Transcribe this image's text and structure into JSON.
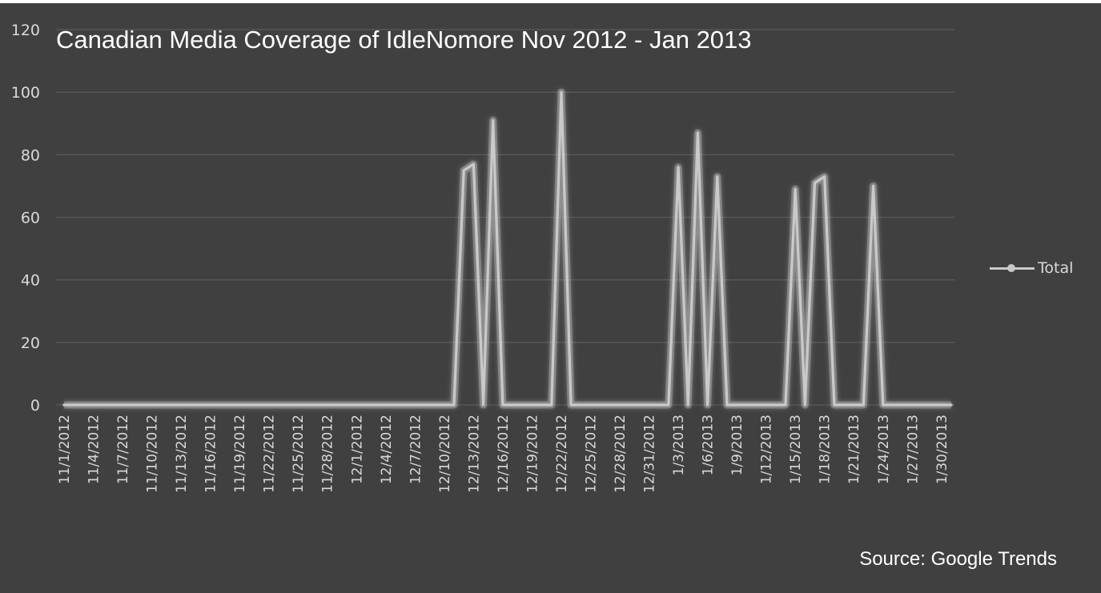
{
  "chart_data": {
    "type": "line",
    "title": "Canadian Media Coverage of IdleNomore Nov 2012 - Jan 2013",
    "source": "Source: Google Trends",
    "xlabel": "",
    "ylabel": "",
    "ylim": [
      0,
      120
    ],
    "yticks": [
      0,
      20,
      40,
      60,
      80,
      100,
      120
    ],
    "grid": true,
    "legend_position": "right",
    "line_color": "#c9c9c9",
    "background_color": "#404040",
    "x_tick_labels": [
      "11/1/2012",
      "11/4/2012",
      "11/7/2012",
      "11/10/2012",
      "11/13/2012",
      "11/16/2012",
      "11/19/2012",
      "11/22/2012",
      "11/25/2012",
      "11/28/2012",
      "12/1/2012",
      "12/4/2012",
      "12/7/2012",
      "12/10/2012",
      "12/13/2012",
      "12/16/2012",
      "12/19/2012",
      "12/22/2012",
      "12/25/2012",
      "12/28/2012",
      "12/31/2012",
      "1/3/2013",
      "1/6/2013",
      "1/9/2013",
      "1/12/2013",
      "1/15/2013",
      "1/18/2013",
      "1/21/2013",
      "1/24/2013",
      "1/27/2013",
      "1/30/2013"
    ],
    "series": [
      {
        "name": "Total",
        "points": [
          [
            "11/1/2012",
            0
          ],
          [
            "12/11/2012",
            0
          ],
          [
            "12/12/2012",
            75
          ],
          [
            "12/13/2012",
            77
          ],
          [
            "12/14/2012",
            0
          ],
          [
            "12/15/2012",
            91
          ],
          [
            "12/16/2012",
            0
          ],
          [
            "12/21/2012",
            0
          ],
          [
            "12/22/2012",
            100
          ],
          [
            "12/23/2012",
            0
          ],
          [
            "1/2/2013",
            0
          ],
          [
            "1/3/2013",
            76
          ],
          [
            "1/4/2013",
            0
          ],
          [
            "1/5/2013",
            87
          ],
          [
            "1/6/2013",
            0
          ],
          [
            "1/7/2013",
            73
          ],
          [
            "1/8/2013",
            0
          ],
          [
            "1/14/2013",
            0
          ],
          [
            "1/15/2013",
            69
          ],
          [
            "1/16/2013",
            0
          ],
          [
            "1/17/2013",
            71
          ],
          [
            "1/18/2013",
            73
          ],
          [
            "1/19/2013",
            0
          ],
          [
            "1/22/2013",
            0
          ],
          [
            "1/23/2013",
            70
          ],
          [
            "1/24/2013",
            0
          ],
          [
            "1/31/2013",
            0
          ]
        ]
      }
    ]
  }
}
